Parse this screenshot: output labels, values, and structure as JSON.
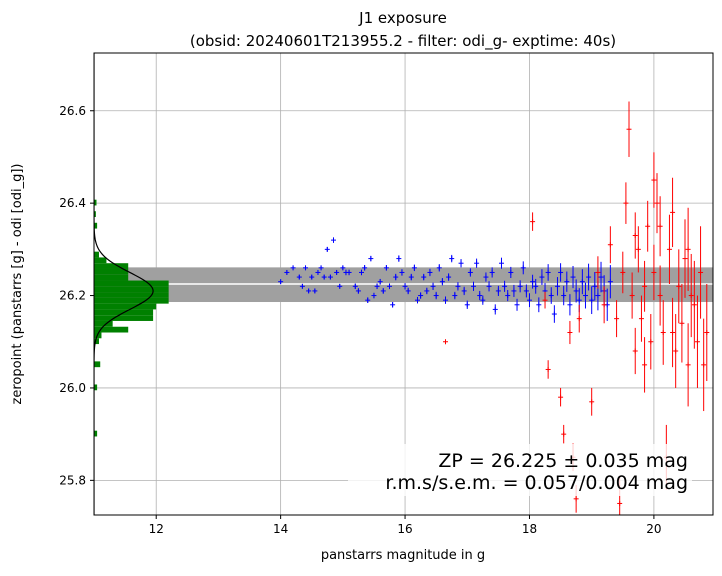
{
  "chart_data": {
    "type": "scatter",
    "title": "J1 exposure",
    "subtitle": "(obsid: 20240601T213955.2 - filter: odi_g- exptime: 40s)",
    "xlabel": "panstarrs magnitude in g",
    "ylabel": "zeropoint (panstarrs [g] - odi [odi_g])",
    "xlim": [
      11.0,
      20.95
    ],
    "ylim": [
      25.725,
      26.725
    ],
    "xticks": [
      12,
      14,
      16,
      18,
      20
    ],
    "yticks": [
      25.8,
      26.0,
      26.2,
      26.4,
      26.6
    ],
    "grid": true,
    "zeropoint": 26.225,
    "zeropoint_band": [
      26.186,
      26.261
    ],
    "annotation_line1": "ZP = 26.225 ± 0.035 mag",
    "annotation_line2": "r.m.s/s.e.m. = 0.057/0.004 mag",
    "colors": {
      "used": "#0000ff",
      "rejected": "#ff0000",
      "histogram": "#008000",
      "band": "#a0a0a0",
      "gauss": "#000000"
    },
    "histogram": {
      "bin_width": 0.0125,
      "bins": [
        [
          25.895,
          25.9075,
          11.05
        ],
        [
          25.995,
          26.0075,
          11.05
        ],
        [
          26.045,
          26.0575,
          11.1
        ],
        [
          26.095,
          26.1075,
          11.08
        ],
        [
          26.1075,
          26.12,
          11.12
        ],
        [
          26.12,
          26.1325,
          11.55
        ],
        [
          26.1325,
          26.145,
          11.3
        ],
        [
          26.145,
          26.1575,
          11.95
        ],
        [
          26.1575,
          26.17,
          11.95
        ],
        [
          26.17,
          26.1825,
          12.0
        ],
        [
          26.1825,
          26.195,
          12.2
        ],
        [
          26.195,
          26.2075,
          12.2
        ],
        [
          26.2075,
          26.22,
          12.2
        ],
        [
          26.22,
          26.2325,
          12.2
        ],
        [
          26.2325,
          26.245,
          11.55
        ],
        [
          26.245,
          26.2575,
          11.55
        ],
        [
          26.2575,
          26.27,
          11.55
        ],
        [
          26.27,
          26.2825,
          11.2
        ],
        [
          26.2825,
          26.295,
          11.08
        ],
        [
          26.345,
          26.3575,
          11.05
        ],
        [
          26.37,
          26.3825,
          11.03
        ],
        [
          26.395,
          26.4075,
          11.04
        ]
      ],
      "gauss_mu": 26.21,
      "gauss_sigma": 0.04,
      "gauss_peak": 11.95
    },
    "series": [
      {
        "name": "used",
        "points": [
          [
            14.0,
            26.23,
            0.005
          ],
          [
            14.1,
            26.25,
            0.005
          ],
          [
            14.2,
            26.26,
            0.005
          ],
          [
            14.3,
            26.24,
            0.005
          ],
          [
            14.35,
            26.22,
            0.005
          ],
          [
            14.4,
            26.26,
            0.005
          ],
          [
            14.45,
            26.21,
            0.005
          ],
          [
            14.5,
            26.24,
            0.005
          ],
          [
            14.55,
            26.21,
            0.005
          ],
          [
            14.6,
            26.25,
            0.005
          ],
          [
            14.65,
            26.26,
            0.005
          ],
          [
            14.7,
            26.24,
            0.005
          ],
          [
            14.75,
            26.3,
            0.005
          ],
          [
            14.8,
            26.24,
            0.005
          ],
          [
            14.85,
            26.32,
            0.006
          ],
          [
            14.9,
            26.25,
            0.005
          ],
          [
            14.95,
            26.22,
            0.005
          ],
          [
            15.0,
            26.26,
            0.005
          ],
          [
            15.05,
            26.25,
            0.006
          ],
          [
            15.1,
            26.25,
            0.006
          ],
          [
            15.2,
            26.22,
            0.006
          ],
          [
            15.25,
            26.21,
            0.006
          ],
          [
            15.3,
            26.25,
            0.006
          ],
          [
            15.35,
            26.26,
            0.006
          ],
          [
            15.4,
            26.19,
            0.006
          ],
          [
            15.45,
            26.28,
            0.006
          ],
          [
            15.5,
            26.2,
            0.006
          ],
          [
            15.55,
            26.22,
            0.006
          ],
          [
            15.6,
            26.23,
            0.006
          ],
          [
            15.65,
            26.21,
            0.006
          ],
          [
            15.7,
            26.26,
            0.006
          ],
          [
            15.75,
            26.22,
            0.006
          ],
          [
            15.8,
            26.18,
            0.006
          ],
          [
            15.85,
            26.24,
            0.007
          ],
          [
            15.9,
            26.28,
            0.007
          ],
          [
            15.95,
            26.25,
            0.007
          ],
          [
            16.0,
            26.22,
            0.007
          ],
          [
            16.05,
            26.21,
            0.007
          ],
          [
            16.1,
            26.24,
            0.007
          ],
          [
            16.15,
            26.26,
            0.007
          ],
          [
            16.2,
            26.19,
            0.007
          ],
          [
            16.25,
            26.2,
            0.007
          ],
          [
            16.3,
            26.24,
            0.007
          ],
          [
            16.35,
            26.21,
            0.007
          ],
          [
            16.4,
            26.25,
            0.008
          ],
          [
            16.45,
            26.22,
            0.008
          ],
          [
            16.5,
            26.2,
            0.008
          ],
          [
            16.55,
            26.26,
            0.008
          ],
          [
            16.6,
            26.23,
            0.008
          ],
          [
            16.65,
            26.19,
            0.008
          ],
          [
            16.7,
            26.24,
            0.008
          ],
          [
            16.75,
            26.28,
            0.008
          ],
          [
            16.8,
            26.2,
            0.008
          ],
          [
            16.85,
            26.22,
            0.009
          ],
          [
            16.9,
            26.27,
            0.009
          ],
          [
            16.95,
            26.21,
            0.009
          ],
          [
            17.0,
            26.18,
            0.009
          ],
          [
            17.05,
            26.25,
            0.009
          ],
          [
            17.1,
            26.22,
            0.01
          ],
          [
            17.15,
            26.27,
            0.01
          ],
          [
            17.2,
            26.2,
            0.01
          ],
          [
            17.25,
            26.19,
            0.01
          ],
          [
            17.3,
            26.24,
            0.01
          ],
          [
            17.35,
            26.22,
            0.011
          ],
          [
            17.4,
            26.25,
            0.011
          ],
          [
            17.45,
            26.17,
            0.011
          ],
          [
            17.5,
            26.21,
            0.011
          ],
          [
            17.55,
            26.27,
            0.012
          ],
          [
            17.6,
            26.22,
            0.012
          ],
          [
            17.65,
            26.2,
            0.012
          ],
          [
            17.7,
            26.25,
            0.012
          ],
          [
            17.75,
            26.21,
            0.013
          ],
          [
            17.8,
            26.18,
            0.013
          ],
          [
            17.85,
            26.22,
            0.013
          ],
          [
            17.9,
            26.26,
            0.014
          ],
          [
            17.95,
            26.21,
            0.014
          ],
          [
            18.0,
            26.19,
            0.015
          ],
          [
            18.05,
            26.23,
            0.015
          ],
          [
            18.1,
            26.22,
            0.016
          ],
          [
            18.15,
            26.18,
            0.016
          ],
          [
            18.2,
            26.24,
            0.017
          ],
          [
            18.25,
            26.21,
            0.017
          ],
          [
            18.3,
            26.25,
            0.018
          ],
          [
            18.35,
            26.2,
            0.018
          ],
          [
            18.4,
            26.16,
            0.019
          ],
          [
            18.45,
            26.22,
            0.02
          ],
          [
            18.5,
            26.25,
            0.02
          ],
          [
            18.55,
            26.2,
            0.021
          ],
          [
            18.6,
            26.23,
            0.022
          ],
          [
            18.65,
            26.18,
            0.023
          ],
          [
            18.7,
            26.24,
            0.024
          ],
          [
            18.75,
            26.21,
            0.025
          ],
          [
            18.8,
            26.19,
            0.026
          ],
          [
            18.85,
            26.23,
            0.027
          ],
          [
            18.9,
            26.2,
            0.028
          ],
          [
            18.95,
            26.24,
            0.029
          ],
          [
            19.0,
            26.19,
            0.03
          ],
          [
            19.05,
            26.22,
            0.031
          ],
          [
            19.1,
            26.2,
            0.032
          ],
          [
            19.15,
            26.24,
            0.033
          ],
          [
            19.2,
            26.21,
            0.034
          ],
          [
            19.25,
            26.18,
            0.035
          ],
          [
            19.3,
            26.23,
            0.036
          ]
        ]
      },
      {
        "name": "rejected",
        "points": [
          [
            16.65,
            26.1,
            0.005
          ],
          [
            18.05,
            26.36,
            0.02
          ],
          [
            18.25,
            26.19,
            0.018
          ],
          [
            18.3,
            26.04,
            0.02
          ],
          [
            18.5,
            25.98,
            0.02
          ],
          [
            18.55,
            25.9,
            0.02
          ],
          [
            18.65,
            26.12,
            0.025
          ],
          [
            18.7,
            25.85,
            0.03
          ],
          [
            18.75,
            25.76,
            0.03
          ],
          [
            18.8,
            26.15,
            0.03
          ],
          [
            19.0,
            25.97,
            0.03
          ],
          [
            19.1,
            26.25,
            0.035
          ],
          [
            19.2,
            26.18,
            0.04
          ],
          [
            19.3,
            26.31,
            0.04
          ],
          [
            19.4,
            26.15,
            0.04
          ],
          [
            19.5,
            26.25,
            0.045
          ],
          [
            19.55,
            26.4,
            0.045
          ],
          [
            19.6,
            26.56,
            0.06
          ],
          [
            19.65,
            26.2,
            0.05
          ],
          [
            19.7,
            26.08,
            0.05
          ],
          [
            19.75,
            26.3,
            0.05
          ],
          [
            19.8,
            26.15,
            0.05
          ],
          [
            19.85,
            26.22,
            0.055
          ],
          [
            19.9,
            26.35,
            0.055
          ],
          [
            19.95,
            26.1,
            0.06
          ],
          [
            20.0,
            26.25,
            0.06
          ],
          [
            20.05,
            26.4,
            0.065
          ],
          [
            20.1,
            26.2,
            0.065
          ],
          [
            20.15,
            26.12,
            0.07
          ],
          [
            20.2,
            25.85,
            0.07
          ],
          [
            20.25,
            26.3,
            0.075
          ],
          [
            20.3,
            26.38,
            0.075
          ],
          [
            20.35,
            26.08,
            0.08
          ],
          [
            20.4,
            26.22,
            0.08
          ],
          [
            20.45,
            26.14,
            0.085
          ],
          [
            20.5,
            26.28,
            0.085
          ],
          [
            20.55,
            26.05,
            0.09
          ],
          [
            20.6,
            26.2,
            0.09
          ],
          [
            20.65,
            26.18,
            0.095
          ],
          [
            20.7,
            26.1,
            0.1
          ],
          [
            20.75,
            26.25,
            0.1
          ],
          [
            20.8,
            26.05,
            0.1
          ],
          [
            20.85,
            26.12,
            0.105
          ],
          [
            19.45,
            25.75,
            0.06
          ],
          [
            20.0,
            26.45,
            0.06
          ],
          [
            20.3,
            26.12,
            0.075
          ],
          [
            19.85,
            26.05,
            0.06
          ],
          [
            20.55,
            26.3,
            0.09
          ],
          [
            20.1,
            26.35,
            0.065
          ],
          [
            19.7,
            26.33,
            0.05
          ]
        ]
      }
    ]
  }
}
